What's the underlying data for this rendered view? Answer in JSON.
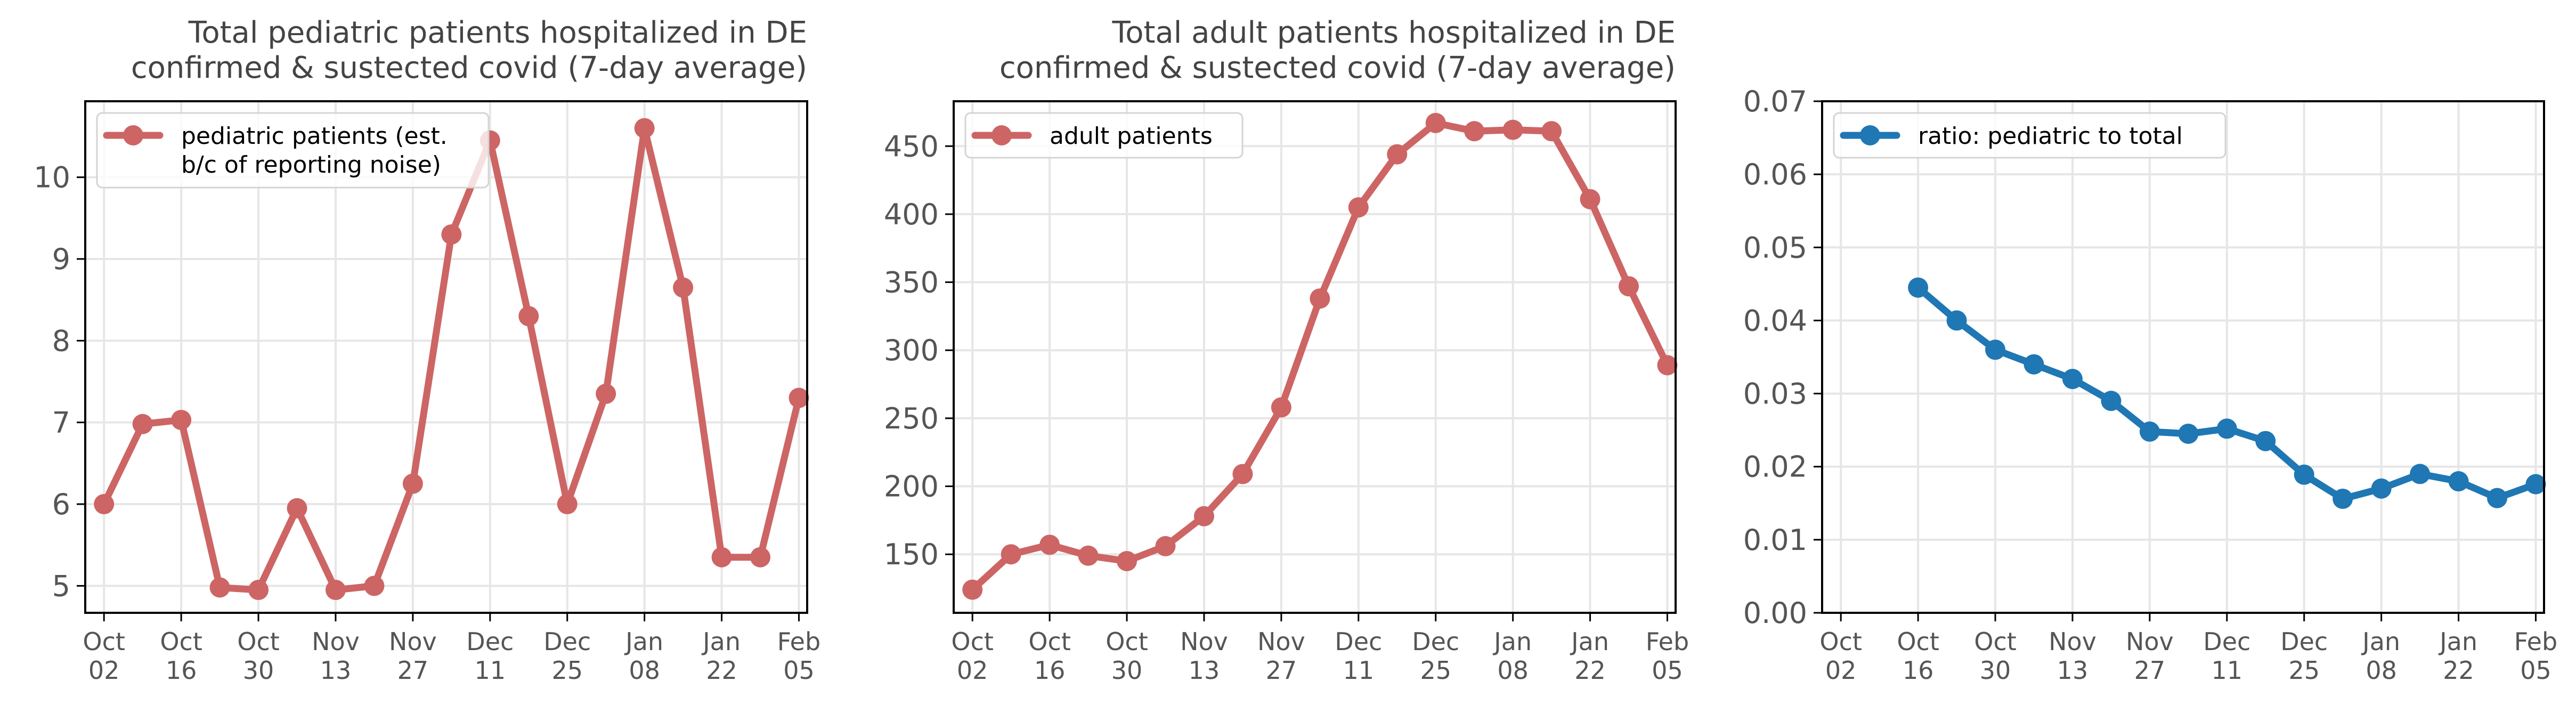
{
  "colors": {
    "red": "#cd6565",
    "blue": "#1f77b4",
    "grid": "#e6e6e6",
    "axis": "#000000"
  },
  "legend_icon": "line-with-circle-marker",
  "chart_data": [
    {
      "type": "line",
      "title": "Total pediatric patients hospitalized in DE\nconfirmed & sustected covid (7-day average)",
      "x": [
        "2022-10-02",
        "2022-10-09",
        "2022-10-16",
        "2022-10-23",
        "2022-10-30",
        "2022-11-06",
        "2022-11-13",
        "2022-11-20",
        "2022-11-27",
        "2022-12-04",
        "2022-12-11",
        "2022-12-18",
        "2022-12-25",
        "2023-01-01",
        "2023-01-08",
        "2023-01-15",
        "2023-01-22",
        "2023-01-29",
        "2023-02-05"
      ],
      "series": [
        {
          "name": "pediatric patients (est.\nb/c of reporting noise)",
          "color": "#cd6565",
          "values": [
            6.0,
            6.98,
            7.03,
            4.98,
            4.95,
            5.95,
            4.95,
            5.0,
            6.25,
            9.3,
            10.45,
            8.3,
            6.0,
            7.35,
            10.6,
            8.65,
            5.35,
            5.35,
            7.3
          ]
        }
      ],
      "ylim": [
        4.67,
        10.93
      ],
      "yticks": [
        "5",
        "6",
        "7",
        "8",
        "9",
        "10"
      ],
      "xticks": [
        [
          "Oct",
          "02"
        ],
        [
          "Oct",
          "16"
        ],
        [
          "Oct",
          "30"
        ],
        [
          "Nov",
          "13"
        ],
        [
          "Nov",
          "27"
        ],
        [
          "Dec",
          "11"
        ],
        [
          "Dec",
          "25"
        ],
        [
          "Jan",
          "08"
        ],
        [
          "Jan",
          "22"
        ],
        [
          "Feb",
          "05"
        ]
      ],
      "xlabel": "",
      "ylabel": "",
      "legend": "upper left",
      "grid": true
    },
    {
      "type": "line",
      "title": "Total adult patients hospitalized in DE\nconfirmed & sustected covid (7-day average)",
      "x": [
        "2022-10-02",
        "2022-10-09",
        "2022-10-16",
        "2022-10-23",
        "2022-10-30",
        "2022-11-06",
        "2022-11-13",
        "2022-11-20",
        "2022-11-27",
        "2022-12-04",
        "2022-12-11",
        "2022-12-18",
        "2022-12-25",
        "2023-01-01",
        "2023-01-08",
        "2023-01-15",
        "2023-01-22",
        "2023-01-29",
        "2023-02-05"
      ],
      "series": [
        {
          "name": "adult patients",
          "color": "#cd6565",
          "values": [
            124,
            150,
            157,
            149,
            145,
            156,
            178,
            209,
            258,
            338,
            405,
            444,
            467,
            461,
            462,
            461,
            411,
            347,
            289
          ]
        }
      ],
      "ylim": [
        107,
        483
      ],
      "yticks": [
        "150",
        "200",
        "250",
        "300",
        "350",
        "400",
        "450"
      ],
      "xticks": [
        [
          "Oct",
          "02"
        ],
        [
          "Oct",
          "16"
        ],
        [
          "Oct",
          "30"
        ],
        [
          "Nov",
          "13"
        ],
        [
          "Nov",
          "27"
        ],
        [
          "Dec",
          "11"
        ],
        [
          "Dec",
          "25"
        ],
        [
          "Jan",
          "08"
        ],
        [
          "Jan",
          "22"
        ],
        [
          "Feb",
          "05"
        ]
      ],
      "xlabel": "",
      "ylabel": "",
      "legend": "upper left",
      "grid": true
    },
    {
      "type": "line",
      "title": "",
      "x": [
        "2022-10-16",
        "2022-10-23",
        "2022-10-30",
        "2022-11-06",
        "2022-11-13",
        "2022-11-20",
        "2022-11-27",
        "2022-12-04",
        "2022-12-11",
        "2022-12-18",
        "2022-12-25",
        "2023-01-01",
        "2023-01-08",
        "2023-01-15",
        "2023-01-22",
        "2023-01-29",
        "2023-02-05"
      ],
      "series": [
        {
          "name": "ratio: pediatric to total",
          "color": "#1f77b4",
          "values": [
            0.0445,
            0.04,
            0.036,
            0.034,
            0.032,
            0.029,
            0.0248,
            0.0245,
            0.0252,
            0.0235,
            0.0189,
            0.0156,
            0.017,
            0.019,
            0.018,
            0.0157,
            0.0176
          ]
        }
      ],
      "ylim": [
        0.0,
        0.07
      ],
      "yticks": [
        "0.00",
        "0.01",
        "0.02",
        "0.03",
        "0.04",
        "0.05",
        "0.06",
        "0.07"
      ],
      "xticks": [
        [
          "Oct",
          "02"
        ],
        [
          "Oct",
          "16"
        ],
        [
          "Oct",
          "30"
        ],
        [
          "Nov",
          "13"
        ],
        [
          "Nov",
          "27"
        ],
        [
          "Dec",
          "11"
        ],
        [
          "Dec",
          "25"
        ],
        [
          "Jan",
          "08"
        ],
        [
          "Jan",
          "22"
        ],
        [
          "Feb",
          "05"
        ]
      ],
      "xlabel": "",
      "ylabel": "",
      "legend": "upper left",
      "grid": true
    }
  ]
}
